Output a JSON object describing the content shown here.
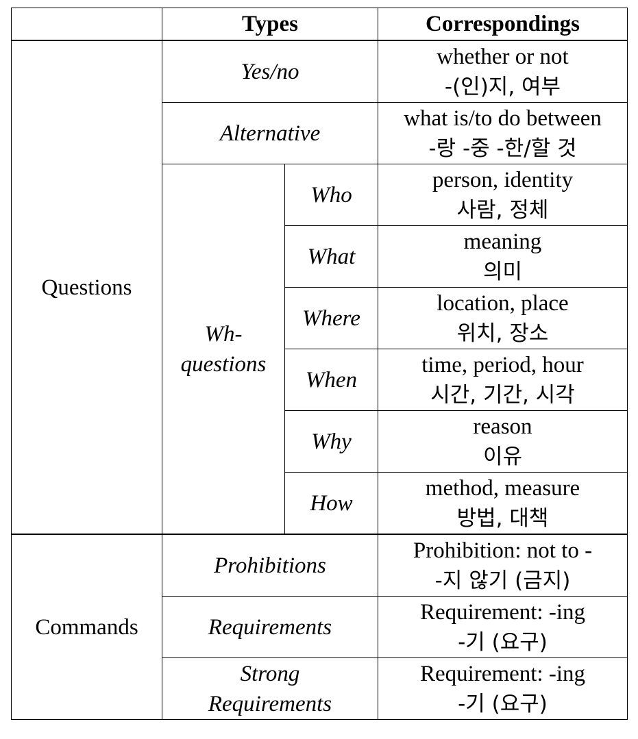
{
  "header": {
    "blank": "",
    "types": "Types",
    "correspondings": "Correspondings"
  },
  "groups": {
    "questions": {
      "label": "Questions",
      "rows": {
        "yesno": {
          "type": "Yes/no",
          "en": "whether or not",
          "ko": "-(인)지, 여부"
        },
        "alternative": {
          "type": "Alternative",
          "en": "what is/to do between",
          "ko": "-랑 -중 -한/할 것"
        }
      },
      "wh": {
        "label_line1": "Wh-",
        "label_line2": "questions",
        "rows": {
          "who": {
            "type": "Who",
            "en": "person, identity",
            "ko": "사람, 정체"
          },
          "what": {
            "type": "What",
            "en": "meaning",
            "ko": "의미"
          },
          "where": {
            "type": "Where",
            "en": "location, place",
            "ko": "위치, 장소"
          },
          "when": {
            "type": "When",
            "en": "time, period, hour",
            "ko": "시간, 기간, 시각"
          },
          "why": {
            "type": "Why",
            "en": "reason",
            "ko": "이유"
          },
          "how": {
            "type": "How",
            "en": "method, measure",
            "ko": "방법, 대책"
          }
        }
      }
    },
    "commands": {
      "label": "Commands",
      "rows": {
        "prohibitions": {
          "type": "Prohibitions",
          "en": "Prohibition: not to -",
          "ko": "-지 않기 (금지)"
        },
        "requirements": {
          "type": "Requirements",
          "en": "Requirement: -ing",
          "ko": "-기 (요구)"
        },
        "strong": {
          "type_line1": "Strong",
          "type_line2": "Requirements",
          "en": "Requirement: -ing",
          "ko": "-기 (요구)"
        }
      }
    }
  }
}
